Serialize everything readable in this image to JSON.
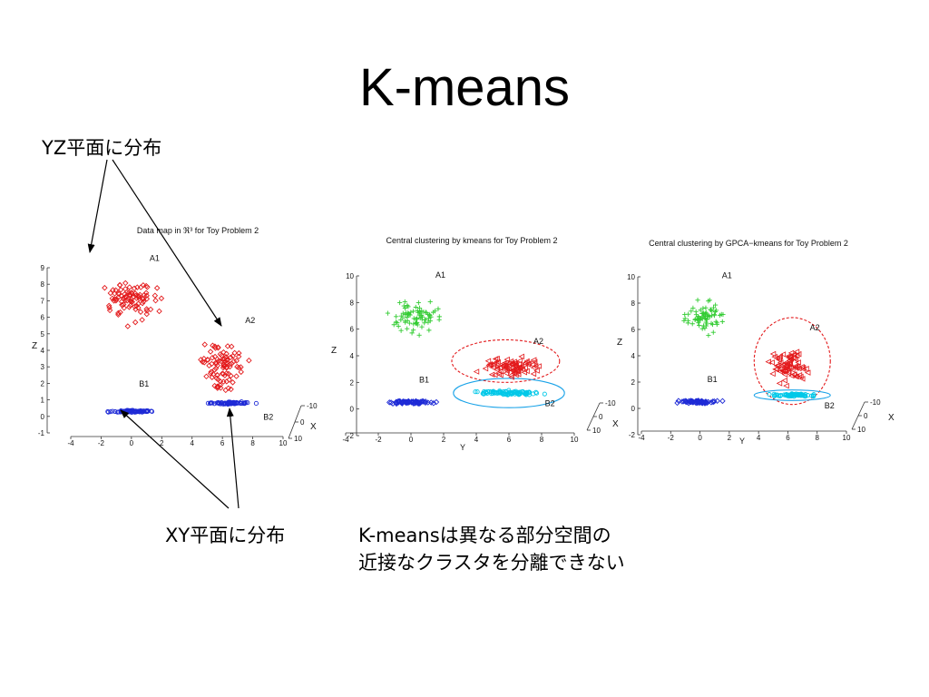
{
  "slide": {
    "title": "K-means",
    "callout_yz": "YZ平面に分布",
    "callout_xy": "XY平面に分布",
    "note_line1": "K-meansは異なる部分空間の",
    "note_line2": "近接なクラスタを分離できない"
  },
  "chart_data": [
    {
      "type": "scatter",
      "projection": "3d",
      "title": "Data map in ℜ³ for Toy Problem 2",
      "zlabel": "Z",
      "xlabel": "X",
      "ylabel": "",
      "zlim": [
        -1,
        9
      ],
      "ylim": [
        -4,
        10
      ],
      "xlim": [
        -10,
        10
      ],
      "z_ticks": [
        "-1",
        "0",
        "1",
        "2",
        "3",
        "4",
        "5",
        "6",
        "7",
        "8",
        "9"
      ],
      "y_ticks": [
        "-4",
        "-2",
        "0",
        "2",
        "4",
        "6",
        "8",
        "10"
      ],
      "x_ticks": [
        "-10",
        "0",
        "10"
      ],
      "series": [
        {
          "name": "A1",
          "plane": "YZ",
          "marker": "diamond",
          "color": "#e31a1c",
          "y_center": 0,
          "z_center": 7,
          "spread": [
            1.3,
            1.0
          ]
        },
        {
          "name": "A2",
          "plane": "YZ",
          "marker": "diamond",
          "color": "#e31a1c",
          "y_center": 6,
          "z_center": 3,
          "spread": [
            1.2,
            1.1
          ]
        },
        {
          "name": "B1",
          "plane": "XY",
          "marker": "circle",
          "color": "#1f2bd6",
          "y_center": 0,
          "z_center": 0.3,
          "spread": [
            1.2,
            0.06
          ]
        },
        {
          "name": "B2",
          "plane": "XY",
          "marker": "circle",
          "color": "#1f2bd6",
          "y_center": 6.5,
          "z_center": 0.8,
          "spread": [
            1.3,
            0.06
          ]
        }
      ]
    },
    {
      "type": "scatter",
      "projection": "3d",
      "title": "Central clustering by kmeans for Toy Problem 2",
      "zlabel": "Z",
      "xlabel": "X",
      "ylabel": "Y",
      "zlim": [
        -2,
        10
      ],
      "ylim": [
        -4,
        10
      ],
      "xlim": [
        -10,
        10
      ],
      "z_ticks": [
        "-2",
        "0",
        "2",
        "4",
        "6",
        "8",
        "10"
      ],
      "y_ticks": [
        "-4",
        "-2",
        "0",
        "2",
        "4",
        "6",
        "8",
        "10"
      ],
      "x_ticks": [
        "-10",
        "0",
        "10"
      ],
      "series": [
        {
          "name": "A1",
          "marker": "plus",
          "color": "#33cc33",
          "y_center": 0.3,
          "z_center": 7,
          "spread": [
            1.2,
            1.2
          ]
        },
        {
          "name": "A2",
          "marker": "triangle",
          "color": "#e31a1c",
          "y_center": 6,
          "z_center": 3.2,
          "spread": [
            1.6,
            0.7
          ]
        },
        {
          "name": "B1",
          "marker": "diamond",
          "color": "#1f2bd6",
          "y_center": 0,
          "z_center": 0.5,
          "spread": [
            1.3,
            0.1
          ]
        },
        {
          "name": "B2",
          "marker": "circle",
          "color": "#00c8e8",
          "y_center": 6,
          "z_center": 1.2,
          "spread": [
            1.6,
            0.15
          ]
        }
      ],
      "ellipses": [
        {
          "cluster": "A2",
          "style": "dashed",
          "color": "#e31a1c",
          "y_center": 5.8,
          "z_center": 3.6,
          "ry": 3.3,
          "rz": 1.6
        },
        {
          "cluster": "B2",
          "style": "solid",
          "color": "#1aa3e8",
          "y_center": 6,
          "z_center": 1.2,
          "ry": 3.4,
          "rz": 1.1
        }
      ]
    },
    {
      "type": "scatter",
      "projection": "3d",
      "title": "Central clustering by GPCA−kmeans for Toy Problem 2",
      "zlabel": "Z",
      "xlabel": "X",
      "ylabel": "Y",
      "zlim": [
        -2,
        10
      ],
      "ylim": [
        -4,
        10
      ],
      "xlim": [
        -10,
        10
      ],
      "z_ticks": [
        "-2",
        "0",
        "2",
        "4",
        "6",
        "8",
        "10"
      ],
      "y_ticks": [
        "-4",
        "-2",
        "0",
        "2",
        "4",
        "6",
        "8",
        "10"
      ],
      "x_ticks": [
        "-10",
        "0",
        "10"
      ],
      "series": [
        {
          "name": "A1",
          "marker": "plus",
          "color": "#33cc33",
          "y_center": 0.3,
          "z_center": 7,
          "spread": [
            1.2,
            1.2
          ]
        },
        {
          "name": "A2",
          "marker": "triangle",
          "color": "#e31a1c",
          "y_center": 6,
          "z_center": 3.3,
          "spread": [
            1.2,
            1.1
          ]
        },
        {
          "name": "B1",
          "marker": "diamond",
          "color": "#1f2bd6",
          "y_center": 0,
          "z_center": 0.5,
          "spread": [
            1.3,
            0.1
          ]
        },
        {
          "name": "B2",
          "marker": "circle",
          "color": "#00c8e8",
          "y_center": 6.3,
          "z_center": 1.0,
          "spread": [
            1.3,
            0.1
          ]
        }
      ],
      "ellipses": [
        {
          "cluster": "A2",
          "style": "dashed",
          "color": "#e31a1c",
          "y_center": 6.3,
          "z_center": 3.6,
          "ry": 2.6,
          "rz": 3.3
        },
        {
          "cluster": "B2",
          "style": "solid",
          "color": "#1aa3e8",
          "y_center": 6.3,
          "z_center": 1.0,
          "ry": 2.6,
          "rz": 0.4
        }
      ]
    }
  ]
}
